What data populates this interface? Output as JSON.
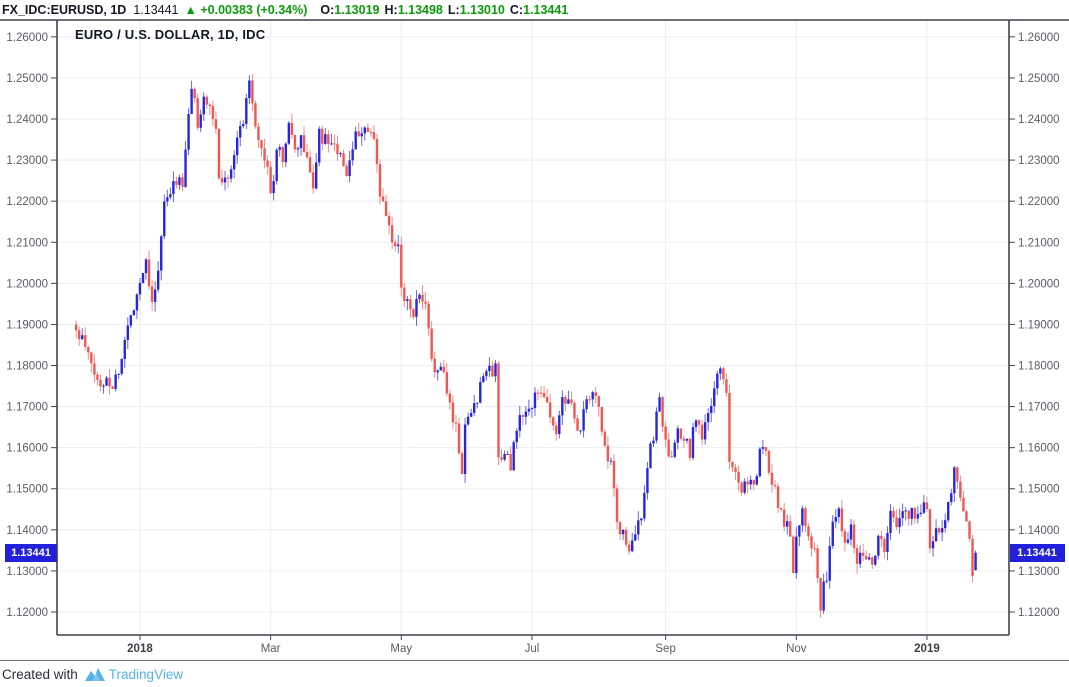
{
  "header": {
    "symbol": "FX_IDC:EURUSD, 1D",
    "last_price": "1.13441",
    "direction_icon": "▲",
    "change_text": "+0.00383 (+0.34%)",
    "ohlc": [
      {
        "label": "O:",
        "value": "1.13019"
      },
      {
        "label": "H:",
        "value": "1.13498"
      },
      {
        "label": "L:",
        "value": "1.13010"
      },
      {
        "label": "C:",
        "value": "1.13441"
      }
    ]
  },
  "footer": {
    "created_with": "Created with",
    "brand": "TradingView"
  },
  "colors": {
    "text_dark": "#131722",
    "green": "#0b9c0b",
    "up_body": "#2726dd",
    "up_wick": "#5558d8",
    "down_body": "#f05750",
    "down_wick": "#f0837c",
    "badge_bg": "#2320dc",
    "grid": "#e8eef5",
    "frame": "#3f434b",
    "axis_text": "#595d66",
    "axis_text_bold": "#3c4048",
    "brand_blue": "#55b2e4"
  },
  "chart_data": {
    "type": "candlestick",
    "title": "EURO / U.S. DOLLAR, 1D, IDC",
    "pair": "EUR/USD",
    "timeframe": "1D",
    "ylim": [
      1.1144,
      1.2641
    ],
    "y_ticks": [
      1.26,
      1.25,
      1.24,
      1.23,
      1.22,
      1.21,
      1.2,
      1.19,
      1.18,
      1.17,
      1.16,
      1.15,
      1.14,
      1.13,
      1.12
    ],
    "x_domain": [
      -6.3,
      307
    ],
    "x_ticks": [
      {
        "label": "2018",
        "i": 21,
        "bold": true
      },
      {
        "label": "Mar",
        "i": 64,
        "bold": false
      },
      {
        "label": "May",
        "i": 107,
        "bold": false
      },
      {
        "label": "Jul",
        "i": 150,
        "bold": false
      },
      {
        "label": "Sep",
        "i": 194,
        "bold": false
      },
      {
        "label": "Nov",
        "i": 237,
        "bold": false
      },
      {
        "label": "2019",
        "i": 280,
        "bold": true
      }
    ],
    "grid": true,
    "candle_count": 297,
    "noise": 0.0038,
    "wick": 0.0024,
    "seed": 11,
    "last_price": 1.13441,
    "last_candle": {
      "o": 1.13019,
      "h": 1.13498,
      "l": 1.1301,
      "c": 1.13441
    },
    "close_anchors": [
      [
        0,
        1.188
      ],
      [
        2,
        1.1862
      ],
      [
        4,
        1.182
      ],
      [
        6,
        1.178
      ],
      [
        8,
        1.1745
      ],
      [
        10,
        1.1772
      ],
      [
        12,
        1.1752
      ],
      [
        14,
        1.1788
      ],
      [
        16,
        1.1858
      ],
      [
        18,
        1.1922
      ],
      [
        21,
        1.2005
      ],
      [
        23,
        1.2058
      ],
      [
        25,
        1.1962
      ],
      [
        27,
        1.2022
      ],
      [
        29,
        1.2195
      ],
      [
        31,
        1.2212
      ],
      [
        33,
        1.2258
      ],
      [
        35,
        1.2232
      ],
      [
        37,
        1.2405
      ],
      [
        38,
        1.2482
      ],
      [
        40,
        1.2392
      ],
      [
        42,
        1.2458
      ],
      [
        44,
        1.2415
      ],
      [
        46,
        1.2382
      ],
      [
        47,
        1.2248
      ],
      [
        49,
        1.2252
      ],
      [
        51,
        1.2292
      ],
      [
        53,
        1.2348
      ],
      [
        55,
        1.2402
      ],
      [
        57,
        1.2502
      ],
      [
        59,
        1.2398
      ],
      [
        61,
        1.2322
      ],
      [
        63,
        1.2288
      ],
      [
        64,
        1.2205
      ],
      [
        66,
        1.2318
      ],
      [
        68,
        1.2308
      ],
      [
        70,
        1.2388
      ],
      [
        72,
        1.2312
      ],
      [
        74,
        1.2358
      ],
      [
        76,
        1.2292
      ],
      [
        78,
        1.2242
      ],
      [
        80,
        1.2358
      ],
      [
        82,
        1.2348
      ],
      [
        84,
        1.2322
      ],
      [
        86,
        1.2328
      ],
      [
        88,
        1.2272
      ],
      [
        90,
        1.2282
      ],
      [
        92,
        1.2358
      ],
      [
        94,
        1.2378
      ],
      [
        96,
        1.2368
      ],
      [
        98,
        1.2338
      ],
      [
        100,
        1.2212
      ],
      [
        102,
        1.2162
      ],
      [
        104,
        1.2102
      ],
      [
        106,
        1.2078
      ],
      [
        107,
        1.1998
      ],
      [
        109,
        1.1952
      ],
      [
        111,
        1.1932
      ],
      [
        113,
        1.1962
      ],
      [
        115,
        1.1938
      ],
      [
        117,
        1.1812
      ],
      [
        119,
        1.1792
      ],
      [
        121,
        1.1772
      ],
      [
        123,
        1.1702
      ],
      [
        125,
        1.1652
      ],
      [
        127,
        1.1542
      ],
      [
        128,
        1.1658
      ],
      [
        130,
        1.1695
      ],
      [
        132,
        1.1722
      ],
      [
        134,
        1.1792
      ],
      [
        136,
        1.1782
      ],
      [
        138,
        1.1795
      ],
      [
        139,
        1.1572
      ],
      [
        141,
        1.1602
      ],
      [
        143,
        1.1542
      ],
      [
        145,
        1.1648
      ],
      [
        147,
        1.1682
      ],
      [
        150,
        1.1692
      ],
      [
        152,
        1.1745
      ],
      [
        154,
        1.1738
      ],
      [
        156,
        1.1672
      ],
      [
        158,
        1.1632
      ],
      [
        160,
        1.1712
      ],
      [
        162,
        1.1735
      ],
      [
        164,
        1.1655
      ],
      [
        166,
        1.1658
      ],
      [
        168,
        1.1702
      ],
      [
        170,
        1.1742
      ],
      [
        172,
        1.1688
      ],
      [
        174,
        1.1592
      ],
      [
        176,
        1.1552
      ],
      [
        178,
        1.1412
      ],
      [
        180,
        1.1392
      ],
      [
        182,
        1.1342
      ],
      [
        184,
        1.1382
      ],
      [
        186,
        1.1442
      ],
      [
        188,
        1.1562
      ],
      [
        190,
        1.1622
      ],
      [
        192,
        1.1732
      ],
      [
        194,
        1.1602
      ],
      [
        196,
        1.1562
      ],
      [
        198,
        1.1632
      ],
      [
        200,
        1.1618
      ],
      [
        202,
        1.1592
      ],
      [
        204,
        1.1682
      ],
      [
        206,
        1.1628
      ],
      [
        208,
        1.1668
      ],
      [
        210,
        1.1752
      ],
      [
        212,
        1.1782
      ],
      [
        214,
        1.1732
      ],
      [
        215,
        1.1582
      ],
      [
        217,
        1.1548
      ],
      [
        219,
        1.1498
      ],
      [
        221,
        1.1528
      ],
      [
        223,
        1.1492
      ],
      [
        225,
        1.1592
      ],
      [
        227,
        1.1582
      ],
      [
        229,
        1.1522
      ],
      [
        231,
        1.1468
      ],
      [
        233,
        1.1422
      ],
      [
        235,
        1.1392
      ],
      [
        236,
        1.1312
      ],
      [
        237,
        1.1388
      ],
      [
        239,
        1.1452
      ],
      [
        241,
        1.1402
      ],
      [
        243,
        1.1342
      ],
      [
        245,
        1.1222
      ],
      [
        247,
        1.1292
      ],
      [
        249,
        1.1408
      ],
      [
        251,
        1.1448
      ],
      [
        253,
        1.1382
      ],
      [
        255,
        1.1402
      ],
      [
        257,
        1.1332
      ],
      [
        258,
        1.1355
      ],
      [
        260,
        1.1342
      ],
      [
        262,
        1.1322
      ],
      [
        264,
        1.1378
      ],
      [
        266,
        1.1352
      ],
      [
        268,
        1.1438
      ],
      [
        270,
        1.1402
      ],
      [
        272,
        1.1452
      ],
      [
        274,
        1.1432
      ],
      [
        276,
        1.1442
      ],
      [
        278,
        1.1458
      ],
      [
        280,
        1.1462
      ],
      [
        281,
        1.1342
      ],
      [
        283,
        1.1402
      ],
      [
        285,
        1.1422
      ],
      [
        287,
        1.1452
      ],
      [
        289,
        1.1548
      ],
      [
        291,
        1.1472
      ],
      [
        293,
        1.1418
      ],
      [
        294,
        1.1382
      ],
      [
        295,
        1.1302
      ],
      [
        296,
        1.13441
      ]
    ]
  }
}
